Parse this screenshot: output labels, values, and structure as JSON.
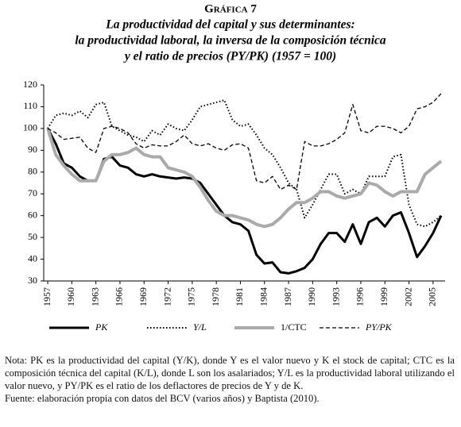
{
  "chart_data": {
    "type": "line",
    "label": "Gráfica 7",
    "title_lines": [
      "La productividad del capital y sus determinantes:",
      "la productividad laboral, la inversa de la composición técnica",
      "y el ratio de precios (PY/PK) (1957 = 100)"
    ],
    "x": [
      1957,
      1958,
      1959,
      1960,
      1961,
      1962,
      1963,
      1964,
      1965,
      1966,
      1967,
      1968,
      1969,
      1970,
      1971,
      1972,
      1973,
      1974,
      1975,
      1976,
      1977,
      1978,
      1979,
      1980,
      1981,
      1982,
      1983,
      1984,
      1985,
      1986,
      1987,
      1988,
      1989,
      1990,
      1991,
      1992,
      1993,
      1994,
      1995,
      1996,
      1997,
      1998,
      1999,
      2000,
      2001,
      2002,
      2003,
      2004,
      2005,
      2006
    ],
    "xlim": [
      1956.5,
      2006.5
    ],
    "xticks": [
      1957,
      1960,
      1963,
      1966,
      1969,
      1972,
      1975,
      1978,
      1981,
      1984,
      1987,
      1990,
      1993,
      1996,
      1999,
      2002,
      2005
    ],
    "ylim": [
      30,
      120
    ],
    "yticks": [
      30,
      40,
      50,
      60,
      70,
      80,
      90,
      100,
      110,
      120
    ],
    "grid": false,
    "series": [
      {
        "name": "PK",
        "color": "#000000",
        "line_style": "solid",
        "width": 3,
        "values": [
          100,
          93,
          84,
          82,
          78,
          76,
          76,
          86,
          87,
          83,
          82,
          79,
          78,
          79,
          78,
          77.5,
          77,
          77.5,
          77,
          75,
          70,
          65,
          60,
          57,
          56,
          53,
          42,
          38,
          38.5,
          34,
          33.5,
          34.5,
          36,
          40,
          47,
          52,
          52,
          48,
          56,
          47,
          57,
          59,
          55,
          60,
          61.5,
          52,
          41,
          46,
          52,
          60
        ]
      },
      {
        "name": "Y/L",
        "color": "#000000",
        "line_style": "dotted",
        "width": 2,
        "values": [
          100,
          106,
          107,
          106,
          108,
          105,
          111,
          112,
          101,
          99,
          97,
          96,
          94,
          99,
          97,
          102,
          100,
          99,
          104,
          110,
          111,
          112,
          113,
          104,
          101,
          102,
          97,
          91,
          88,
          82,
          75,
          72,
          59,
          65,
          72,
          79,
          79,
          70,
          72,
          70,
          78,
          78,
          78,
          87,
          88,
          65,
          56,
          55,
          57,
          60
        ]
      },
      {
        "name": "1/CTC",
        "color": "#aaaaaa",
        "line_style": "solid",
        "width": 4,
        "values": [
          100,
          88,
          83,
          79,
          76,
          76,
          76,
          85,
          88,
          88,
          89,
          91,
          88,
          87,
          87,
          82,
          81,
          80,
          78,
          73,
          67,
          62,
          60,
          60,
          59,
          58,
          56,
          55,
          56,
          59,
          63,
          66,
          66,
          68,
          71,
          71,
          69,
          68,
          69,
          70,
          75,
          74,
          71,
          69,
          71,
          71,
          71,
          79,
          82,
          85
        ]
      },
      {
        "name": "PY/PK",
        "color": "#000000",
        "line_style": "dashed",
        "width": 1.3,
        "values": [
          100,
          98,
          95,
          95.5,
          96,
          91,
          89,
          100,
          101,
          100,
          98,
          93,
          91,
          92.5,
          92,
          92,
          94,
          97,
          93,
          92,
          93,
          91,
          90,
          92.5,
          93,
          91,
          76,
          75,
          78,
          72,
          74,
          72,
          94,
          92,
          92,
          93,
          95,
          98,
          111,
          99,
          98,
          101,
          101,
          100,
          98,
          101,
          109,
          110,
          112,
          116
        ]
      }
    ],
    "note": "Nota: PK es la productividad del capital (Y/K), donde Y es el valor nuevo y K el stock de capital; CTC es la composición técnica del capital (K/L), donde L son los asalariados; Y/L es la productividad laboral utilizando el valor nuevo, y PY/PK es el ratio de los deflactores de precios de Y y de K.",
    "source": "Fuente: elaboración propia con datos del BCV (varios años) y Baptista (2010)."
  }
}
